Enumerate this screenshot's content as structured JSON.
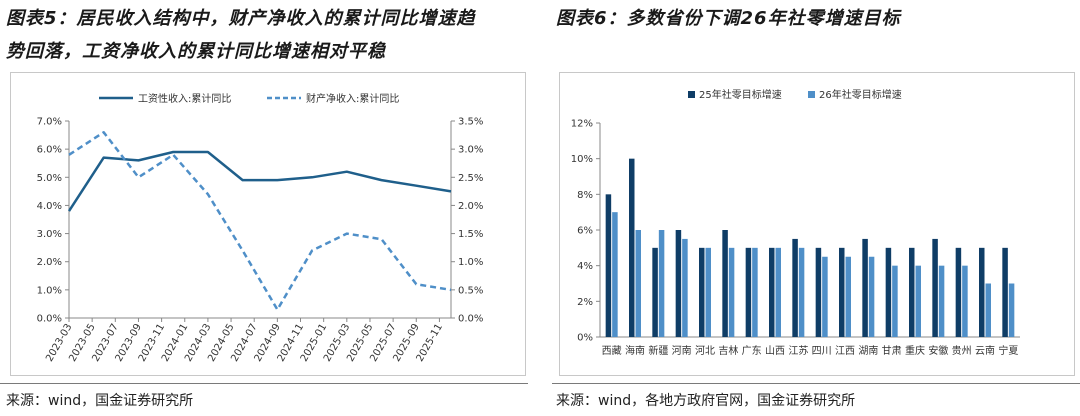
{
  "left_panel": {
    "title_line1": "图表5：居民收入结构中，财产净收入的累计同比增速趋",
    "title_line2": "势回落，工资净收入的累计同比增速相对平稳",
    "source": "来源：wind，国金证券研究所"
  },
  "right_panel": {
    "title_line1": "图表6：多数省份下调26年社零增速目标",
    "source": "来源：wind，各地方政府官网，国金证券研究所"
  },
  "colors": {
    "primary": "#1f5f8b",
    "secondary": "#4f8fc8",
    "dark_bar": "#0f3d66",
    "light_bar": "#4f8fc8"
  },
  "chart_data": [
    {
      "type": "line",
      "x": [
        "2023-03",
        "2023-05",
        "2023-07",
        "2023-09",
        "2023-11",
        "2024-01",
        "2024-03",
        "2024-05",
        "2024-07",
        "2024-09",
        "2024-11",
        "2025-01",
        "2025-03",
        "2025-05",
        "2025-07",
        "2025-09",
        "2025-11"
      ],
      "x_tick_labels": [
        "2023-03",
        "2023-05",
        "2023-07",
        "2023-09",
        "2023-11",
        "2024-01",
        "2024-03",
        "2024-05",
        "2024-07",
        "2024-09",
        "2024-11",
        "2025-01",
        "2025-03",
        "2025-05",
        "2025-07",
        "2025-09",
        "2025-11"
      ],
      "series": [
        {
          "name": "工资性收入:累计同比",
          "axis": "left",
          "style": "solid",
          "points": [
            {
              "x": "2023-03",
              "y": 3.8
            },
            {
              "x": "2023-06",
              "y": 5.7
            },
            {
              "x": "2023-09",
              "y": 5.6
            },
            {
              "x": "2023-12",
              "y": 5.9
            },
            {
              "x": "2024-03",
              "y": 5.9
            },
            {
              "x": "2024-06",
              "y": 4.9
            },
            {
              "x": "2024-09",
              "y": 4.9
            },
            {
              "x": "2024-12",
              "y": 5.0
            },
            {
              "x": "2025-03",
              "y": 5.2
            },
            {
              "x": "2025-06",
              "y": 4.9
            },
            {
              "x": "2025-09",
              "y": 4.7
            },
            {
              "x": "2025-12",
              "y": 4.5
            }
          ]
        },
        {
          "name": "财产净收入:累计同比",
          "axis": "right",
          "style": "dashed",
          "points": [
            {
              "x": "2023-03",
              "y": 2.9
            },
            {
              "x": "2023-06",
              "y": 3.3
            },
            {
              "x": "2023-09",
              "y": 2.5
            },
            {
              "x": "2023-12",
              "y": 2.9
            },
            {
              "x": "2024-03",
              "y": 2.2
            },
            {
              "x": "2024-06",
              "y": 1.2
            },
            {
              "x": "2024-09",
              "y": 0.15
            },
            {
              "x": "2024-12",
              "y": 1.2
            },
            {
              "x": "2025-03",
              "y": 1.5
            },
            {
              "x": "2025-06",
              "y": 1.4
            },
            {
              "x": "2025-09",
              "y": 0.6
            },
            {
              "x": "2025-12",
              "y": 0.5
            }
          ]
        }
      ],
      "y_left": {
        "min": 0,
        "max": 7,
        "ticks": [
          "0.0%",
          "1.0%",
          "2.0%",
          "3.0%",
          "4.0%",
          "5.0%",
          "6.0%",
          "7.0%"
        ]
      },
      "y_right": {
        "min": 0,
        "max": 3.5,
        "ticks": [
          "0.0%",
          "0.5%",
          "1.0%",
          "1.5%",
          "2.0%",
          "2.5%",
          "3.0%",
          "3.5%"
        ]
      },
      "legend_position": "top",
      "grid": false
    },
    {
      "type": "bar",
      "categories": [
        "西藏",
        "海南",
        "新疆",
        "河南",
        "河北",
        "吉林",
        "广东",
        "山西",
        "江苏",
        "四川",
        "江西",
        "湖南",
        "甘肃",
        "重庆",
        "安徽",
        "贵州",
        "云南",
        "宁夏"
      ],
      "series": [
        {
          "name": "25年社零目标增速",
          "values": [
            8,
            10,
            5,
            6,
            5,
            6,
            5,
            5,
            5.5,
            5,
            5,
            5.5,
            5,
            5,
            5.5,
            5,
            5,
            5
          ]
        },
        {
          "name": "26年社零目标增速",
          "values": [
            7,
            6,
            6,
            5.5,
            5,
            5,
            5,
            5,
            5,
            4.5,
            4.5,
            4.5,
            4,
            4,
            4,
            4,
            3,
            3
          ]
        }
      ],
      "y": {
        "min": 0,
        "max": 12,
        "ticks": [
          "0%",
          "2%",
          "4%",
          "6%",
          "8%",
          "10%",
          "12%"
        ]
      },
      "legend_position": "top",
      "grid": false
    }
  ]
}
